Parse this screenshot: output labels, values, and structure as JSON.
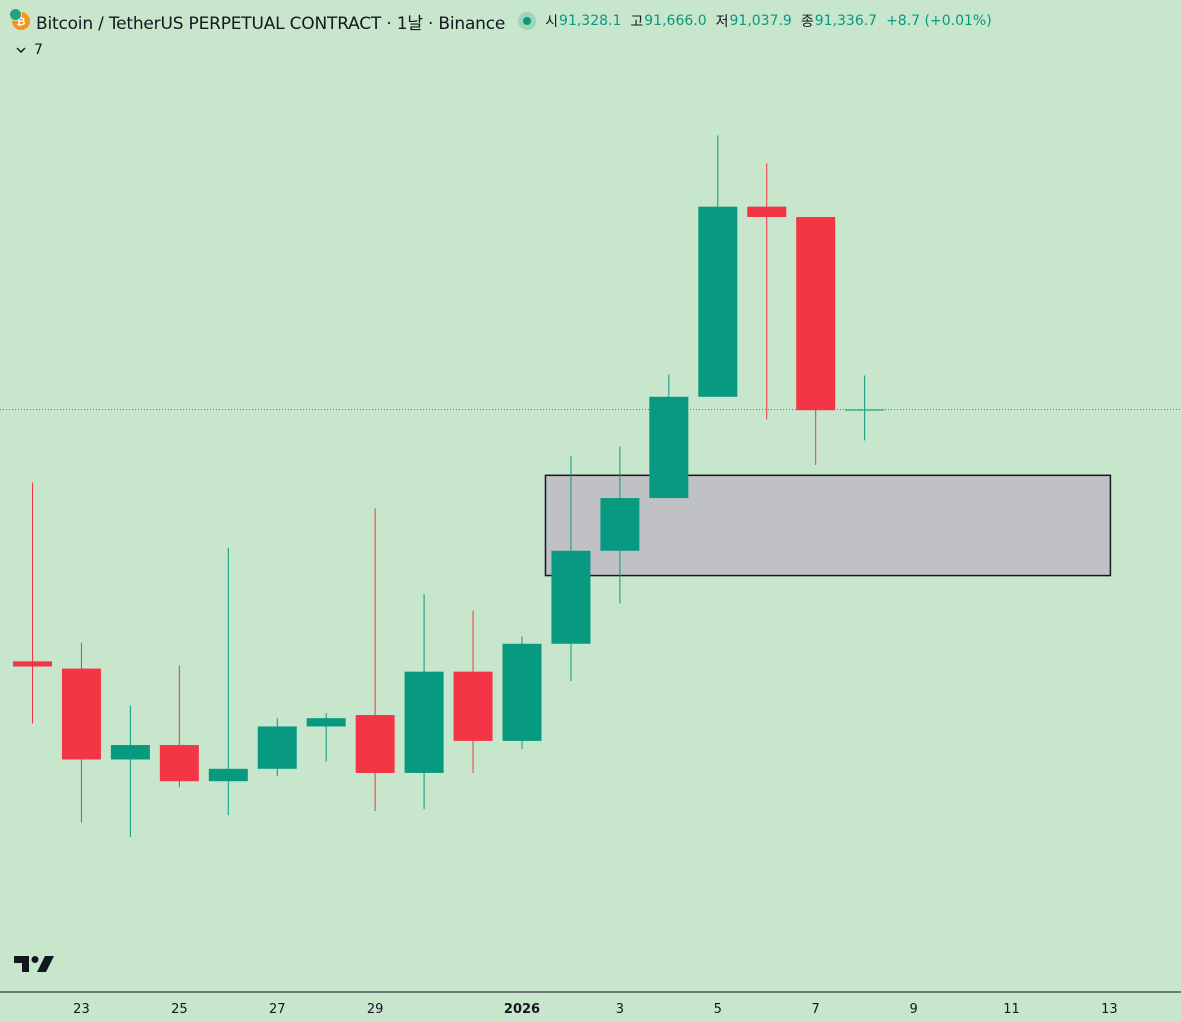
{
  "header": {
    "title": "Bitcoin / TetherUS PERPETUAL CONTRACT · 1날 · Binance",
    "coin_icon_char": "₿",
    "ohlc": {
      "open_label": "시",
      "open_value": "91,328.1",
      "high_label": "고",
      "high_value": "91,666.0",
      "low_label": "저",
      "low_value": "91,037.9",
      "close_label": "종",
      "close_value": "91,336.7",
      "change": "+8.7 (+0.01%)"
    }
  },
  "indicator": {
    "label": "7"
  },
  "colors": {
    "background": "#c8e6cb",
    "up": "#089981",
    "down": "#f23645",
    "zone_fill": "#c0c1c5",
    "zone_border": "#131722",
    "price_line": "#f23645"
  },
  "chart_data": {
    "type": "candlestick",
    "title": "Bitcoin / TetherUS PERPETUAL CONTRACT · 1날 · Binance",
    "ylim": [
      85700,
      95300
    ],
    "current_price": 91336.7,
    "x_ticks": [
      {
        "label": "23",
        "index": 1
      },
      {
        "label": "25",
        "index": 3
      },
      {
        "label": "27",
        "index": 5
      },
      {
        "label": "29",
        "index": 7
      },
      {
        "label": "2026",
        "index": 10,
        "bold": true
      },
      {
        "label": "3",
        "index": 12
      },
      {
        "label": "5",
        "index": 14
      },
      {
        "label": "7",
        "index": 16
      },
      {
        "label": "9",
        "index": 18
      },
      {
        "label": "11",
        "index": 20
      },
      {
        "label": "13",
        "index": 22
      }
    ],
    "candles": [
      {
        "date": "Dec 22",
        "open": 88900,
        "high": 90630,
        "low": 88300,
        "close": 88850
      },
      {
        "date": "Dec 23",
        "open": 88830,
        "high": 89080,
        "low": 87340,
        "close": 87950
      },
      {
        "date": "Dec 24",
        "open": 87950,
        "high": 88470,
        "low": 87200,
        "close": 88090
      },
      {
        "date": "Dec 25",
        "open": 88090,
        "high": 88860,
        "low": 87680,
        "close": 87740
      },
      {
        "date": "Dec 26",
        "open": 87740,
        "high": 90000,
        "low": 87410,
        "close": 87860
      },
      {
        "date": "Dec 27",
        "open": 87860,
        "high": 88350,
        "low": 87790,
        "close": 88270
      },
      {
        "date": "Dec 28",
        "open": 88270,
        "high": 88400,
        "low": 87930,
        "close": 88350
      },
      {
        "date": "Dec 29",
        "open": 88380,
        "high": 90380,
        "low": 87450,
        "close": 87820
      },
      {
        "date": "Dec 30",
        "open": 87820,
        "high": 89550,
        "low": 87470,
        "close": 88800
      },
      {
        "date": "Dec 31",
        "open": 88800,
        "high": 89390,
        "low": 87820,
        "close": 88130
      },
      {
        "date": "Jan 1",
        "open": 88130,
        "high": 89140,
        "low": 88050,
        "close": 89070
      },
      {
        "date": "Jan 2",
        "open": 89070,
        "high": 90890,
        "low": 88710,
        "close": 89970
      },
      {
        "date": "Jan 3",
        "open": 89970,
        "high": 90980,
        "low": 89460,
        "close": 90480
      },
      {
        "date": "Jan 4",
        "open": 90480,
        "high": 91680,
        "low": 90480,
        "close": 91460
      },
      {
        "date": "Jan 5",
        "open": 91460,
        "high": 93990,
        "low": 91460,
        "close": 93300
      },
      {
        "date": "Jan 6",
        "open": 93300,
        "high": 93720,
        "low": 91240,
        "close": 93200
      },
      {
        "date": "Jan 7",
        "open": 93200,
        "high": 93200,
        "low": 90800,
        "close": 91330
      },
      {
        "date": "Jan 8",
        "open": 91328.1,
        "high": 91666.0,
        "low": 91037.9,
        "close": 91336.7
      }
    ],
    "zones": [
      {
        "label": "",
        "start_index": 10.5,
        "end_index": 22.0,
        "top": 90700,
        "bottom": 89730
      }
    ]
  }
}
